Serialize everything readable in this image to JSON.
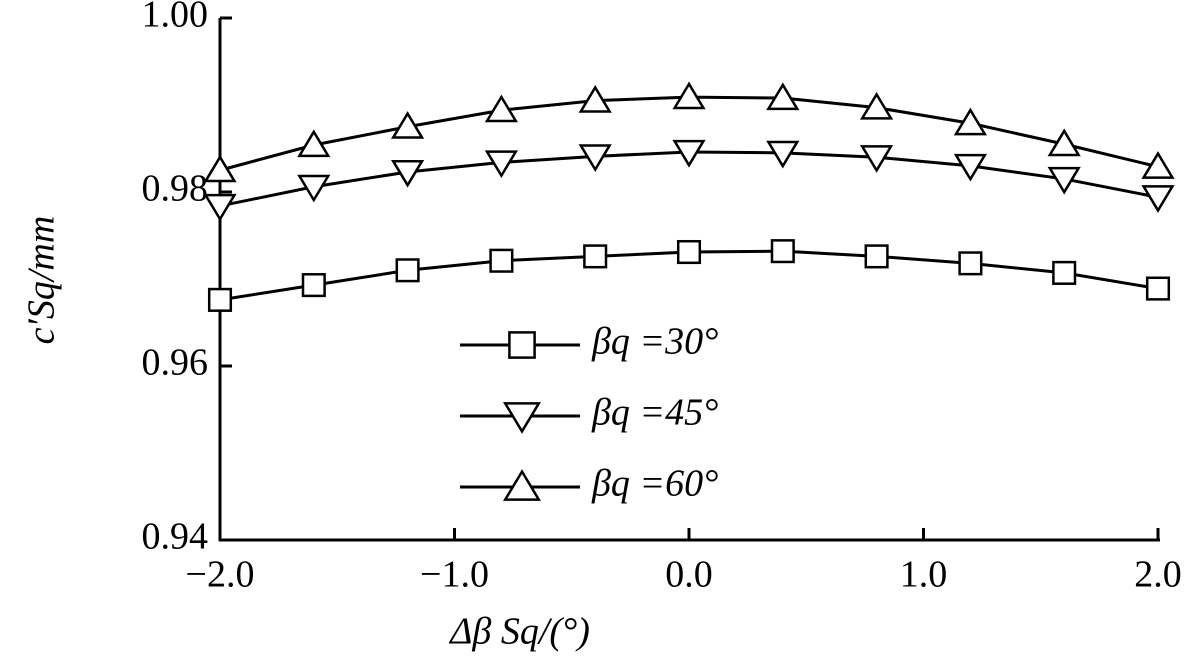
{
  "chart_data": {
    "type": "line",
    "x_label": "Δβ Sq/(°)",
    "y_label": "c′Sq/mm",
    "x": [
      -2.0,
      -1.6,
      -1.2,
      -0.8,
      -0.4,
      0.0,
      0.4,
      0.8,
      1.2,
      1.6,
      2.0
    ],
    "series": [
      {
        "name": "βq =30°",
        "color": "#000000",
        "marker": "square",
        "values": [
          0.9676,
          0.9693,
          0.971,
          0.9721,
          0.9726,
          0.9731,
          0.9732,
          0.9726,
          0.9718,
          0.9707,
          0.9689
        ]
      },
      {
        "name": "βq =45°",
        "color": "#000000",
        "marker": "triangle-up",
        "values": [
          0.9784,
          0.9806,
          0.9823,
          0.9834,
          0.9841,
          0.9846,
          0.9845,
          0.984,
          0.983,
          0.9815,
          0.9794
        ]
      },
      {
        "name": "βq =60°",
        "color": "#000000",
        "marker": "triangle-down",
        "values": [
          0.9825,
          0.9854,
          0.9875,
          0.9894,
          0.9905,
          0.9909,
          0.9908,
          0.9897,
          0.9879,
          0.9855,
          0.9829
        ]
      }
    ],
    "xlim": [
      -2.0,
      2.0
    ],
    "xticks": [
      {
        "value": -2,
        "label": "−2.0"
      },
      {
        "value": -1,
        "label": "−1.0"
      },
      {
        "value": 0,
        "label": "0.0"
      },
      {
        "value": 1,
        "label": "1.0"
      },
      {
        "value": 2,
        "label": "2.0"
      }
    ],
    "ylim": [
      0.94,
      1.0
    ],
    "yticks": [
      0.94,
      0.96,
      0.98,
      {
        "value": 1.0,
        "label": "1.00"
      }
    ],
    "grid": false
  }
}
